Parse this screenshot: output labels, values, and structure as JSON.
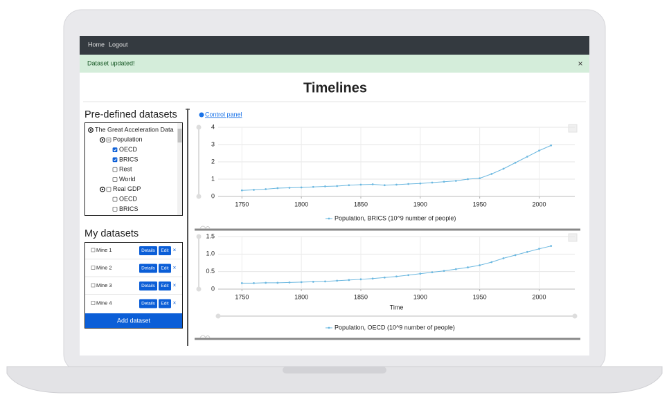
{
  "nav": {
    "links": [
      "Home",
      "Logout"
    ]
  },
  "alert": {
    "text": "Dataset updated!",
    "close": "×"
  },
  "title": "Timelines",
  "predefined": {
    "title": "Pre-defined datasets",
    "items": [
      {
        "label": "The Great Acceleration Data",
        "level": 0
      },
      {
        "label": "Population",
        "level": 1,
        "checked": "mixed"
      },
      {
        "label": "OECD",
        "level": 2,
        "checked": true
      },
      {
        "label": "BRICS",
        "level": 2,
        "checked": true
      },
      {
        "label": "Rest",
        "level": 2,
        "checked": false
      },
      {
        "label": "World",
        "level": 2,
        "checked": false
      },
      {
        "label": "Real GDP",
        "level": 1,
        "checked": false
      },
      {
        "label": "OECD",
        "level": 2,
        "checked": false
      },
      {
        "label": "BRICS",
        "level": 2,
        "checked": false
      }
    ]
  },
  "my_datasets": {
    "title": "My datasets",
    "items": [
      "Mine 1",
      "Mine 2",
      "Mine 3",
      "Mine 4"
    ],
    "details": "Details",
    "edit": "Edit",
    "remove": "×",
    "add": "Add dataset"
  },
  "control_panel": "Control panel",
  "chart_data": [
    {
      "type": "line",
      "x": [
        1750,
        1760,
        1770,
        1780,
        1790,
        1800,
        1810,
        1820,
        1830,
        1840,
        1850,
        1860,
        1870,
        1880,
        1890,
        1900,
        1910,
        1920,
        1930,
        1940,
        1950,
        1960,
        1970,
        1980,
        1990,
        2000,
        2010
      ],
      "series": [
        {
          "name": "Population, BRICS (10^9 number of people)",
          "color": "#6cb8e0",
          "values": [
            0.35,
            0.38,
            0.42,
            0.48,
            0.5,
            0.52,
            0.55,
            0.58,
            0.6,
            0.65,
            0.68,
            0.7,
            0.65,
            0.68,
            0.72,
            0.75,
            0.8,
            0.85,
            0.9,
            1.0,
            1.05,
            1.3,
            1.6,
            1.95,
            2.3,
            2.65,
            2.95
          ]
        }
      ],
      "xlim": [
        1730,
        2030
      ],
      "ylim": [
        0,
        4
      ],
      "xticks": [
        1750,
        1800,
        1850,
        1900,
        1950,
        2000
      ],
      "yticks": [
        0,
        1,
        2,
        3,
        4
      ],
      "grid": true
    },
    {
      "type": "line",
      "xlabel": "Time",
      "x": [
        1750,
        1760,
        1770,
        1780,
        1790,
        1800,
        1810,
        1820,
        1830,
        1840,
        1850,
        1860,
        1870,
        1880,
        1890,
        1900,
        1910,
        1920,
        1930,
        1940,
        1950,
        1960,
        1970,
        1980,
        1990,
        2000,
        2010
      ],
      "series": [
        {
          "name": "Population, OECD (10^9 number of people)",
          "color": "#6cb8e0",
          "values": [
            0.17,
            0.17,
            0.18,
            0.18,
            0.19,
            0.2,
            0.21,
            0.22,
            0.24,
            0.26,
            0.28,
            0.3,
            0.33,
            0.36,
            0.4,
            0.44,
            0.48,
            0.52,
            0.57,
            0.62,
            0.68,
            0.77,
            0.88,
            0.97,
            1.06,
            1.15,
            1.23
          ]
        }
      ],
      "xlim": [
        1730,
        2030
      ],
      "ylim": [
        0,
        1.5
      ],
      "xticks": [
        1750,
        1800,
        1850,
        1900,
        1950,
        2000
      ],
      "yticks": [
        0,
        0.5,
        {
          "value": 1,
          "label": "1.0"
        },
        1.5
      ],
      "grid": true
    }
  ]
}
